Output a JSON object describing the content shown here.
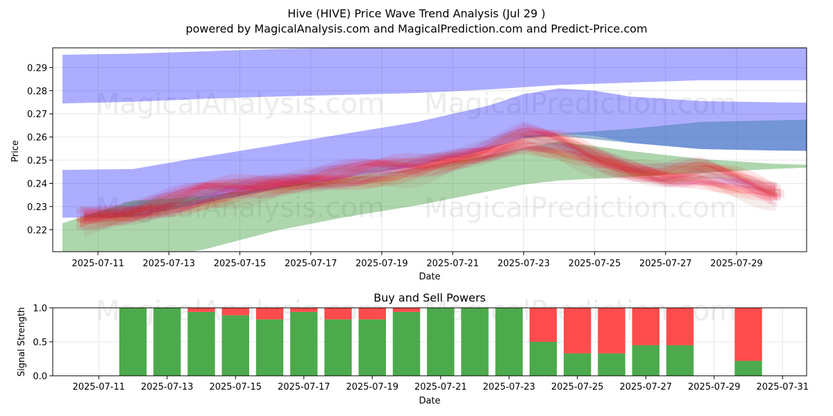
{
  "header": {
    "title": "Hive (HIVE) Price Wave Trend Analysis (Jul 29 )",
    "subtitle": "powered by MagicalAnalysis.com and MagicalPrediction.com and Predict-Price.com"
  },
  "watermarks": [
    "MagicalAnalysis.com",
    "MagicalPrediction.com"
  ],
  "colors": {
    "blue_band": "#0000ff",
    "green_band": "#008000",
    "steel_band": "#4682b4",
    "wave_red": "#ff0000",
    "wave_magenta": "#c71585",
    "wave_brown": "#a0522d",
    "buy": "#4caa4c",
    "sell": "#ff4c4c",
    "grid": "#e6e6e6"
  },
  "chart_data": [
    {
      "type": "area",
      "title": "",
      "xlabel": "Date",
      "ylabel": "Price",
      "x_dates": [
        "2025-07-10",
        "2025-07-12",
        "2025-07-14",
        "2025-07-16",
        "2025-07-18",
        "2025-07-20",
        "2025-07-22",
        "2025-07-23",
        "2025-07-24",
        "2025-07-25",
        "2025-07-26",
        "2025-07-28",
        "2025-07-30",
        "2025-07-31"
      ],
      "xticks": [
        "2025-07-11",
        "2025-07-13",
        "2025-07-15",
        "2025-07-17",
        "2025-07-19",
        "2025-07-21",
        "2025-07-23",
        "2025-07-25",
        "2025-07-27",
        "2025-07-29"
      ],
      "yticks": [
        0.22,
        0.23,
        0.24,
        0.25,
        0.26,
        0.27,
        0.28,
        0.29
      ],
      "ylim": [
        0.2105,
        0.2985
      ],
      "xlim": [
        "2025-07-10",
        "2025-07-31"
      ],
      "grid": true,
      "bands": [
        {
          "name": "upper blue band",
          "color": "#0000ff",
          "x": [
            "2025-07-10",
            "2025-07-12",
            "2025-07-14",
            "2025-07-16",
            "2025-07-18",
            "2025-07-20",
            "2025-07-22",
            "2025-07-24",
            "2025-07-26",
            "2025-07-28",
            "2025-07-30",
            "2025-07-31"
          ],
          "upper": [
            0.2955,
            0.296,
            0.297,
            0.298,
            0.2985,
            0.2985,
            0.2985,
            0.2985,
            0.2985,
            0.2985,
            0.2985,
            0.2985
          ],
          "lower": [
            0.2745,
            0.2752,
            0.2765,
            0.2775,
            0.2782,
            0.279,
            0.2805,
            0.2825,
            0.2835,
            0.2845,
            0.2845,
            0.2845
          ]
        },
        {
          "name": "middle blue band",
          "color": "#0000ff",
          "x": [
            "2025-07-10",
            "2025-07-12",
            "2025-07-14",
            "2025-07-16",
            "2025-07-18",
            "2025-07-20",
            "2025-07-22",
            "2025-07-23",
            "2025-07-24",
            "2025-07-25",
            "2025-07-26",
            "2025-07-28",
            "2025-07-30",
            "2025-07-31"
          ],
          "upper": [
            0.2458,
            0.2462,
            0.2515,
            0.2565,
            0.2615,
            0.2665,
            0.2735,
            0.2785,
            0.281,
            0.28,
            0.2775,
            0.2755,
            0.275,
            0.2748
          ],
          "lower": [
            0.2252,
            0.2255,
            0.2315,
            0.2375,
            0.2425,
            0.2475,
            0.2545,
            0.2595,
            0.2615,
            0.2605,
            0.2575,
            0.2548,
            0.2542,
            0.254
          ]
        },
        {
          "name": "green band",
          "color": "#008000",
          "x": [
            "2025-07-10",
            "2025-07-12",
            "2025-07-14",
            "2025-07-16",
            "2025-07-18",
            "2025-07-20",
            "2025-07-22",
            "2025-07-23",
            "2025-07-24",
            "2025-07-26",
            "2025-07-28",
            "2025-07-30",
            "2025-07-31"
          ],
          "upper": [
            0.2228,
            0.2325,
            0.2345,
            0.2385,
            0.2425,
            0.2465,
            0.252,
            0.2555,
            0.258,
            0.254,
            0.2505,
            0.2485,
            0.248
          ],
          "lower": [
            0.1972,
            0.2065,
            0.2115,
            0.2195,
            0.2255,
            0.2305,
            0.2365,
            0.2395,
            0.2412,
            0.2428,
            0.2445,
            0.2462,
            0.2468
          ]
        },
        {
          "name": "steel band",
          "color": "#4682b4",
          "x": [
            "2025-07-23",
            "2025-07-24",
            "2025-07-26",
            "2025-07-28",
            "2025-07-30",
            "2025-07-31"
          ],
          "upper": [
            0.2605,
            0.2615,
            0.2635,
            0.2665,
            0.2672,
            0.2675
          ],
          "lower": [
            0.2595,
            0.2605,
            0.2575,
            0.2548,
            0.2542,
            0.254
          ]
        }
      ],
      "wave_center": {
        "x": [
          "2025-07-10",
          "2025-07-12",
          "2025-07-14",
          "2025-07-16",
          "2025-07-18",
          "2025-07-20",
          "2025-07-22",
          "2025-07-23",
          "2025-07-24",
          "2025-07-25",
          "2025-07-26",
          "2025-07-27",
          "2025-07-28",
          "2025-07-29",
          "2025-07-30"
        ],
        "y": [
          0.2235,
          0.2275,
          0.235,
          0.2395,
          0.2435,
          0.2465,
          0.254,
          0.2595,
          0.2565,
          0.2505,
          0.246,
          0.2435,
          0.2445,
          0.2405,
          0.2355
        ]
      }
    },
    {
      "type": "bar",
      "title": "Buy and Sell Powers",
      "xlabel": "Date",
      "ylabel": "Signal Strength",
      "categories": [
        "2025-07-12",
        "2025-07-13",
        "2025-07-14",
        "2025-07-15",
        "2025-07-16",
        "2025-07-17",
        "2025-07-18",
        "2025-07-19",
        "2025-07-20",
        "2025-07-21",
        "2025-07-22",
        "2025-07-23",
        "2025-07-24",
        "2025-07-25",
        "2025-07-26",
        "2025-07-27",
        "2025-07-28",
        "2025-07-30"
      ],
      "series": [
        {
          "name": "Buy",
          "values": [
            1.0,
            1.0,
            0.94,
            0.89,
            0.83,
            0.94,
            0.83,
            0.83,
            0.94,
            1.0,
            1.0,
            1.0,
            0.5,
            0.33,
            0.33,
            0.45,
            0.45,
            0.22
          ]
        },
        {
          "name": "Sell",
          "values": [
            0.0,
            0.0,
            0.06,
            0.11,
            0.17,
            0.06,
            0.17,
            0.17,
            0.06,
            0.0,
            0.0,
            0.0,
            0.5,
            0.67,
            0.67,
            0.55,
            0.55,
            0.78
          ]
        }
      ],
      "xticks": [
        "2025-07-11",
        "2025-07-13",
        "2025-07-15",
        "2025-07-17",
        "2025-07-19",
        "2025-07-21",
        "2025-07-23",
        "2025-07-25",
        "2025-07-27",
        "2025-07-29",
        "2025-07-31"
      ],
      "yticks": [
        "0.0",
        "0.5",
        "1.0"
      ],
      "ylim": [
        0,
        1
      ],
      "xlim": [
        "2025-07-10",
        "2025-07-31"
      ],
      "grid": true
    }
  ]
}
